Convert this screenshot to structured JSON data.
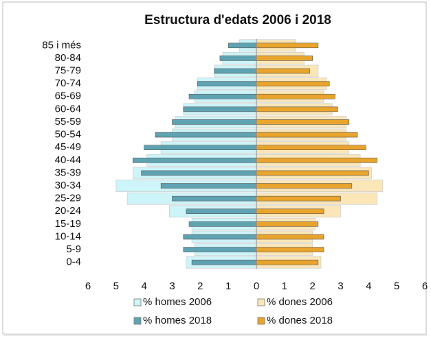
{
  "chart_data": {
    "type": "pyramid",
    "title": "Estructura d'edats 2006 i 2018",
    "categories": [
      "0-4",
      "5-9",
      "10-14",
      "15-19",
      "20-24",
      "25-29",
      "30-34",
      "35-39",
      "40-44",
      "45-49",
      "50-54",
      "55-59",
      "60-64",
      "65-69",
      "70-74",
      "75-79",
      "80-84",
      "85 i més"
    ],
    "series": [
      {
        "name": "% homes 2006",
        "color": "#cdf4f8",
        "values": [
          -2.5,
          -2.2,
          -2.3,
          -2.3,
          -3.1,
          -4.6,
          -5.0,
          -4.4,
          -3.9,
          -3.4,
          -3.0,
          -2.9,
          -2.6,
          -2.2,
          -2.1,
          -1.5,
          -1.2,
          -0.6
        ]
      },
      {
        "name": "% dones 2006",
        "color": "#fbe6b8",
        "values": [
          2.3,
          2.0,
          2.0,
          2.1,
          3.0,
          4.3,
          4.5,
          4.1,
          3.7,
          3.3,
          3.2,
          3.2,
          2.7,
          2.4,
          2.5,
          2.2,
          1.7,
          1.4
        ]
      },
      {
        "name": "% homes 2018",
        "color": "#5fa3b2",
        "values": [
          -2.3,
          -2.6,
          -2.6,
          -2.4,
          -2.5,
          -3.0,
          -3.4,
          -4.1,
          -4.4,
          -4.0,
          -3.6,
          -3.0,
          -2.6,
          -2.4,
          -2.1,
          -1.5,
          -1.3,
          -1.0
        ]
      },
      {
        "name": "% dones 2018",
        "color": "#e8a42c",
        "values": [
          2.2,
          2.4,
          2.4,
          2.2,
          2.4,
          3.0,
          3.4,
          4.0,
          4.3,
          3.9,
          3.6,
          3.3,
          2.9,
          2.8,
          2.6,
          1.9,
          2.0,
          2.2
        ]
      }
    ],
    "xlim": [
      -6,
      6
    ],
    "xticks": [
      {
        "value": -6,
        "label": "6"
      },
      {
        "value": -5,
        "label": "5"
      },
      {
        "value": -4,
        "label": "4"
      },
      {
        "value": -3,
        "label": "3"
      },
      {
        "value": -2,
        "label": "2"
      },
      {
        "value": -1,
        "label": "1"
      },
      0,
      1,
      2,
      3,
      4,
      5,
      6
    ]
  }
}
